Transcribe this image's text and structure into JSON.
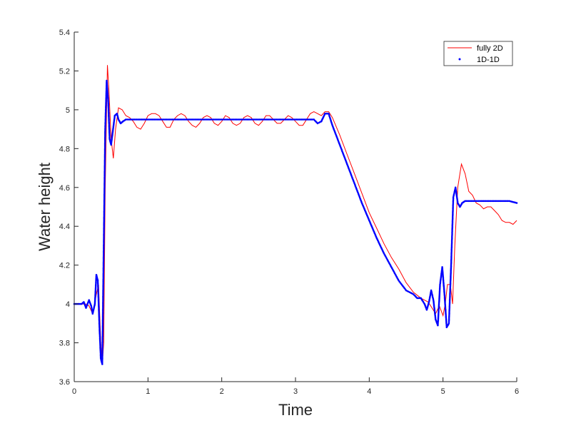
{
  "chart_data": {
    "type": "line",
    "xlabel": "Time",
    "ylabel": "Water height",
    "xlim": [
      0,
      6
    ],
    "ylim": [
      3.6,
      5.4
    ],
    "xticks": [
      0,
      1,
      2,
      3,
      4,
      5,
      6
    ],
    "yticks": [
      3.6,
      3.8,
      4,
      4.2,
      4.4,
      4.6,
      4.8,
      5,
      5.2,
      5.4
    ],
    "xtick_labels": [
      "0",
      "1",
      "2",
      "3",
      "4",
      "5",
      "6"
    ],
    "ytick_labels": [
      "3.6",
      "3.8",
      "4",
      "4.2",
      "4.4",
      "4.6",
      "4.8",
      "5",
      "5.2",
      "5.4"
    ],
    "grid": false,
    "legend_position": "top-right",
    "series": [
      {
        "name": "fully 2D",
        "style": "line",
        "color": "#ff0000",
        "x": [
          0,
          0.1,
          0.15,
          0.2,
          0.25,
          0.3,
          0.33,
          0.36,
          0.38,
          0.4,
          0.42,
          0.45,
          0.47,
          0.5,
          0.53,
          0.56,
          0.6,
          0.65,
          0.7,
          0.75,
          0.8,
          0.85,
          0.9,
          0.95,
          1.0,
          1.05,
          1.1,
          1.15,
          1.2,
          1.25,
          1.3,
          1.35,
          1.4,
          1.45,
          1.5,
          1.55,
          1.6,
          1.65,
          1.7,
          1.75,
          1.8,
          1.85,
          1.9,
          1.95,
          2.0,
          2.05,
          2.1,
          2.15,
          2.2,
          2.25,
          2.3,
          2.35,
          2.4,
          2.45,
          2.5,
          2.55,
          2.6,
          2.65,
          2.7,
          2.75,
          2.8,
          2.85,
          2.9,
          2.95,
          3.0,
          3.05,
          3.1,
          3.15,
          3.2,
          3.25,
          3.3,
          3.35,
          3.4,
          3.45,
          3.5,
          3.6,
          3.7,
          3.8,
          3.9,
          4.0,
          4.1,
          4.2,
          4.3,
          4.4,
          4.5,
          4.6,
          4.7,
          4.75,
          4.8,
          4.85,
          4.9,
          4.95,
          5.0,
          5.03,
          5.06,
          5.1,
          5.13,
          5.16,
          5.2,
          5.25,
          5.3,
          5.35,
          5.4,
          5.45,
          5.5,
          5.55,
          5.6,
          5.65,
          5.7,
          5.75,
          5.8,
          5.85,
          5.9,
          5.95,
          6.0
        ],
        "y": [
          4.0,
          4.0,
          4.0,
          3.99,
          3.95,
          4.05,
          4.1,
          3.8,
          3.69,
          3.8,
          4.6,
          5.23,
          5.1,
          4.85,
          4.75,
          4.9,
          5.01,
          5.0,
          4.97,
          4.96,
          4.94,
          4.91,
          4.9,
          4.93,
          4.97,
          4.98,
          4.98,
          4.97,
          4.94,
          4.91,
          4.91,
          4.95,
          4.97,
          4.98,
          4.97,
          4.94,
          4.92,
          4.91,
          4.93,
          4.96,
          4.97,
          4.96,
          4.93,
          4.92,
          4.94,
          4.97,
          4.96,
          4.93,
          4.92,
          4.93,
          4.96,
          4.97,
          4.96,
          4.93,
          4.92,
          4.94,
          4.97,
          4.97,
          4.95,
          4.93,
          4.93,
          4.95,
          4.97,
          4.96,
          4.94,
          4.92,
          4.92,
          4.95,
          4.98,
          4.99,
          4.98,
          4.97,
          4.99,
          4.99,
          4.96,
          4.87,
          4.77,
          4.67,
          4.57,
          4.47,
          4.39,
          4.31,
          4.24,
          4.18,
          4.11,
          4.06,
          4.03,
          4.02,
          4.01,
          3.98,
          3.95,
          3.99,
          3.94,
          4.0,
          4.1,
          4.1,
          4.0,
          4.3,
          4.6,
          4.72,
          4.67,
          4.58,
          4.56,
          4.52,
          4.51,
          4.49,
          4.5,
          4.5,
          4.48,
          4.46,
          4.43,
          4.42,
          4.42,
          4.41,
          4.43
        ]
      },
      {
        "name": "1D-1D",
        "style": "dots",
        "color": "#0000ff",
        "x": [
          0,
          0.05,
          0.1,
          0.13,
          0.16,
          0.2,
          0.23,
          0.25,
          0.28,
          0.3,
          0.32,
          0.34,
          0.36,
          0.38,
          0.4,
          0.42,
          0.44,
          0.46,
          0.48,
          0.5,
          0.52,
          0.55,
          0.58,
          0.6,
          0.63,
          0.66,
          0.7,
          0.8,
          0.9,
          1.0,
          1.2,
          1.4,
          1.6,
          1.8,
          2.0,
          2.2,
          2.4,
          2.6,
          2.8,
          3.0,
          3.05,
          3.1,
          3.15,
          3.2,
          3.25,
          3.3,
          3.35,
          3.4,
          3.45,
          3.5,
          3.6,
          3.7,
          3.8,
          3.9,
          4.0,
          4.1,
          4.2,
          4.3,
          4.4,
          4.5,
          4.6,
          4.65,
          4.7,
          4.75,
          4.78,
          4.81,
          4.84,
          4.87,
          4.9,
          4.93,
          4.96,
          4.99,
          5.02,
          5.05,
          5.08,
          5.11,
          5.14,
          5.17,
          5.2,
          5.23,
          5.26,
          5.3,
          5.35,
          5.4,
          5.5,
          5.6,
          5.7,
          5.8,
          5.9,
          6.0
        ],
        "y": [
          4.0,
          4.0,
          4.0,
          4.01,
          3.98,
          4.02,
          3.99,
          3.95,
          4.0,
          4.15,
          4.12,
          3.9,
          3.72,
          3.69,
          4.3,
          4.9,
          5.15,
          5.05,
          4.85,
          4.82,
          4.88,
          4.97,
          4.98,
          4.95,
          4.93,
          4.94,
          4.95,
          4.95,
          4.95,
          4.95,
          4.95,
          4.95,
          4.95,
          4.95,
          4.95,
          4.95,
          4.95,
          4.95,
          4.95,
          4.95,
          4.95,
          4.95,
          4.95,
          4.95,
          4.95,
          4.93,
          4.94,
          4.98,
          4.98,
          4.92,
          4.82,
          4.72,
          4.62,
          4.52,
          4.43,
          4.34,
          4.26,
          4.19,
          4.12,
          4.07,
          4.05,
          4.03,
          4.03,
          4.0,
          3.97,
          4.01,
          4.07,
          4.02,
          3.92,
          3.89,
          4.1,
          4.19,
          4.05,
          3.88,
          3.9,
          4.2,
          4.55,
          4.6,
          4.52,
          4.5,
          4.52,
          4.53,
          4.53,
          4.53,
          4.53,
          4.53,
          4.53,
          4.53,
          4.53,
          4.52
        ]
      }
    ]
  }
}
